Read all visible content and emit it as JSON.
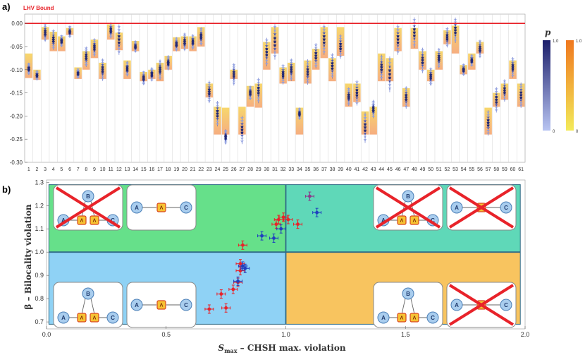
{
  "panel_a_label": "a)",
  "panel_b_label": "b)",
  "chart_data": [
    {
      "type": "scatter",
      "panel": "a",
      "bound_label": "LHV Bound",
      "bound_value": 0.0,
      "ylim": [
        -0.3,
        0.02
      ],
      "yticks": [
        "0.00",
        "-0.05",
        "-0.10",
        "-0.15",
        "-0.20",
        "-0.25",
        "-0.30"
      ],
      "ytick_values": [
        0.0,
        -0.05,
        -0.1,
        -0.15,
        -0.2,
        -0.25,
        -0.3
      ],
      "categories": [
        "1",
        "2",
        "3",
        "4",
        "5",
        "6",
        "7",
        "8",
        "9",
        "10",
        "11",
        "12",
        "13",
        "14",
        "15",
        "16",
        "17",
        "18",
        "19",
        "20",
        "21",
        "22",
        "23",
        "24",
        "25",
        "26",
        "27",
        "28",
        "29",
        "30",
        "31",
        "32",
        "33",
        "34",
        "35",
        "36",
        "37",
        "38",
        "39",
        "40",
        "41",
        "42",
        "43",
        "44",
        "45",
        "46",
        "47",
        "48",
        "49",
        "50",
        "51",
        "52",
        "53",
        "54",
        "55",
        "56",
        "57",
        "58",
        "59",
        "60",
        "61"
      ],
      "center": [
        -0.098,
        -0.112,
        -0.02,
        -0.035,
        -0.038,
        -0.018,
        -0.108,
        -0.072,
        -0.052,
        -0.1,
        -0.015,
        -0.035,
        -0.098,
        -0.05,
        -0.118,
        -0.11,
        -0.1,
        -0.085,
        -0.045,
        -0.04,
        -0.04,
        -0.028,
        -0.148,
        -0.195,
        -0.245,
        -0.11,
        -0.23,
        -0.15,
        -0.145,
        -0.062,
        -0.04,
        -0.11,
        -0.1,
        -0.195,
        -0.105,
        -0.07,
        -0.035,
        -0.092,
        -0.05,
        -0.158,
        -0.15,
        -0.225,
        -0.185,
        -0.095,
        -0.11,
        -0.035,
        -0.16,
        -0.02,
        -0.08,
        -0.115,
        -0.075,
        -0.03,
        -0.015,
        -0.1,
        -0.08,
        -0.055,
        -0.215,
        -0.165,
        -0.145,
        -0.095,
        -0.155
      ],
      "spread": [
        0.012,
        0.01,
        0.018,
        0.02,
        0.012,
        0.012,
        0.01,
        0.02,
        0.018,
        0.022,
        0.016,
        0.03,
        0.015,
        0.012,
        0.014,
        0.014,
        0.02,
        0.015,
        0.014,
        0.018,
        0.015,
        0.018,
        0.022,
        0.025,
        0.015,
        0.022,
        0.028,
        0.014,
        0.025,
        0.028,
        0.035,
        0.02,
        0.022,
        0.012,
        0.025,
        0.025,
        0.03,
        0.025,
        0.024,
        0.018,
        0.025,
        0.03,
        0.018,
        0.025,
        0.035,
        0.03,
        0.022,
        0.03,
        0.025,
        0.018,
        0.02,
        0.02,
        0.025,
        0.012,
        0.012,
        0.018,
        0.025,
        0.025,
        0.022,
        0.02,
        0.025
      ],
      "box_top": [
        -0.065,
        -0.1,
        -0.008,
        -0.018,
        -0.028,
        -0.01,
        -0.095,
        -0.06,
        -0.035,
        -0.085,
        -0.002,
        -0.02,
        -0.08,
        -0.038,
        -0.105,
        -0.1,
        -0.085,
        -0.07,
        -0.03,
        -0.028,
        -0.028,
        -0.008,
        -0.13,
        -0.18,
        -0.182,
        -0.1,
        -0.18,
        -0.135,
        -0.13,
        -0.04,
        -0.008,
        -0.095,
        -0.085,
        -0.182,
        -0.08,
        -0.055,
        -0.008,
        -0.075,
        -0.008,
        -0.13,
        -0.13,
        -0.19,
        -0.18,
        -0.065,
        -0.075,
        -0.01,
        -0.14,
        -0.01,
        -0.06,
        -0.1,
        -0.06,
        -0.015,
        -0.005,
        -0.09,
        -0.065,
        -0.04,
        -0.182,
        -0.15,
        -0.13,
        -0.08,
        -0.13
      ],
      "box_bottom": [
        -0.118,
        -0.122,
        -0.035,
        -0.06,
        -0.06,
        -0.025,
        -0.12,
        -0.1,
        -0.075,
        -0.12,
        -0.035,
        -0.058,
        -0.12,
        -0.06,
        -0.125,
        -0.12,
        -0.125,
        -0.1,
        -0.06,
        -0.055,
        -0.06,
        -0.05,
        -0.16,
        -0.24,
        -0.24,
        -0.12,
        -0.24,
        -0.18,
        -0.182,
        -0.1,
        -0.065,
        -0.13,
        -0.125,
        -0.24,
        -0.13,
        -0.1,
        -0.075,
        -0.125,
        -0.07,
        -0.18,
        -0.17,
        -0.24,
        -0.24,
        -0.125,
        -0.125,
        -0.06,
        -0.18,
        -0.055,
        -0.1,
        -0.125,
        -0.1,
        -0.045,
        -0.065,
        -0.11,
        -0.1,
        -0.065,
        -0.24,
        -0.18,
        -0.165,
        -0.12,
        -0.18
      ],
      "p_colorbars": [
        {
          "title": "p",
          "top": "1.0",
          "bottom": "0",
          "color_top": "#1c1f6b",
          "color_bottom": "#b8c4f2"
        },
        {
          "title": "",
          "top": "1.0",
          "bottom": "0",
          "color_top": "#f0781e",
          "color_bottom": "#f3ea5a"
        }
      ]
    },
    {
      "type": "scatter",
      "panel": "b",
      "xlabel": "S",
      "xlabel_sub": "max",
      "xlabel_rest": " – CHSH max. violation",
      "ylabel": "β – Bilocality violation",
      "xlim": [
        0.0,
        2.0
      ],
      "ylim": [
        0.67,
        1.31
      ],
      "xticks": [
        "0.0",
        "0.5",
        "1.0",
        "1.5",
        "2.0"
      ],
      "xtick_values": [
        0.0,
        0.5,
        1.0,
        1.5,
        2.0
      ],
      "yticks": [
        "0.7",
        "0.8",
        "0.9",
        "1.0",
        "1.1",
        "1.2",
        "1.3"
      ],
      "ytick_values": [
        0.7,
        0.8,
        0.9,
        1.0,
        1.1,
        1.2,
        1.3
      ],
      "threshold_x": 1.0,
      "threshold_y": 1.0,
      "regions": {
        "top_left": "#66e08a",
        "top_right": "#5fd8b8",
        "bottom_left": "#8fd2f5",
        "bottom_right": "#f8c45f"
      },
      "series": [
        {
          "color": "#e8232a",
          "x": [
            0.68,
            0.73,
            0.75,
            0.78,
            0.8,
            0.81,
            0.81,
            0.82,
            0.96,
            0.97,
            0.99,
            1.01,
            1.05
          ],
          "y": [
            0.755,
            0.82,
            0.76,
            0.84,
            0.87,
            0.92,
            0.95,
            1.03,
            1.12,
            1.14,
            1.15,
            1.14,
            1.12
          ]
        },
        {
          "color": "#1f3fbf",
          "x": [
            0.8,
            0.82,
            0.83,
            0.9,
            0.95,
            0.98,
            1.13
          ],
          "y": [
            0.875,
            0.94,
            0.93,
            1.07,
            1.06,
            1.1,
            1.17
          ]
        },
        {
          "color": "#8a3a8a",
          "x": [
            1.1
          ],
          "y": [
            1.24
          ]
        }
      ],
      "diagram": {
        "node_a": "A",
        "node_b": "B",
        "node_c": "C",
        "source": "Λ"
      }
    }
  ]
}
